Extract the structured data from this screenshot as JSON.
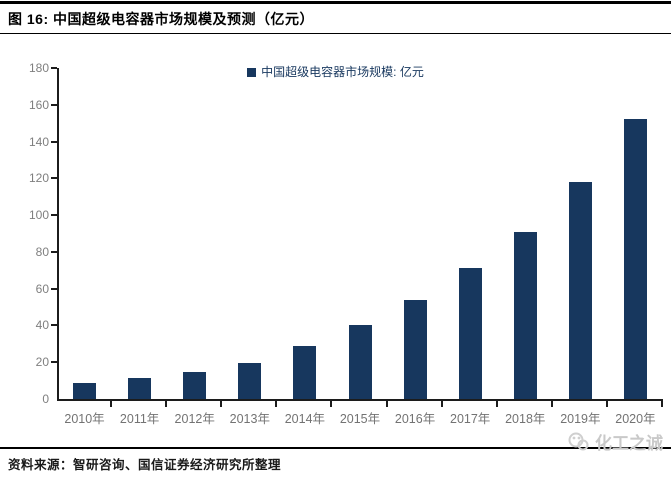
{
  "figure": {
    "title": "图 16:  中国超级电容器市场规模及预测（亿元）",
    "source_note": "资料来源：智研咨询、国信证券经济研究所整理",
    "watermark_text": "化工之诚"
  },
  "chart_data": {
    "type": "bar",
    "title": "中国超级电容器市场规模及预测（亿元）",
    "legend": "中国超级电容器市场规模: 亿元",
    "legend_position": "top-center",
    "categories": [
      "2010年",
      "2011年",
      "2012年",
      "2013年",
      "2014年",
      "2015年",
      "2016年",
      "2017年",
      "2018年",
      "2019年",
      "2020年"
    ],
    "values": [
      8.8,
      11.2,
      14.7,
      19.4,
      28.8,
      40.0,
      54.0,
      71.0,
      91.0,
      118.0,
      152.5
    ],
    "xlabel": "",
    "ylabel": "",
    "ylim": [
      0,
      180
    ],
    "ytick_step": 20,
    "grid": false,
    "bar_color": "#17375E",
    "axis_color": "#1c1c1c",
    "tick_label_color": "#7f7f7f"
  }
}
